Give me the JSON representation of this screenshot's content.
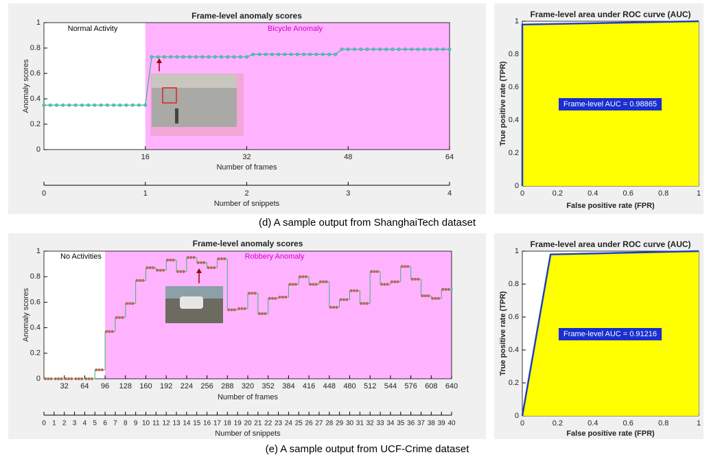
{
  "chart_data": [
    {
      "type": "line",
      "title": "Frame-level anomaly scores",
      "xlabel": "Number of frames",
      "ylabel": "Anomaly scores",
      "x": [
        0,
        1,
        2,
        3,
        4,
        5,
        6,
        7,
        8,
        9,
        10,
        11,
        12,
        13,
        14,
        15,
        16,
        17,
        18,
        19,
        20,
        21,
        22,
        23,
        24,
        25,
        26,
        27,
        28,
        29,
        30,
        31,
        32,
        33,
        34,
        35,
        36,
        37,
        38,
        39,
        40,
        41,
        42,
        43,
        44,
        45,
        46,
        47,
        48,
        49,
        50,
        51,
        52,
        53,
        54,
        55,
        56,
        57,
        58,
        59,
        60,
        61,
        62,
        63,
        64
      ],
      "values": [
        0.35,
        0.35,
        0.35,
        0.35,
        0.35,
        0.35,
        0.35,
        0.35,
        0.35,
        0.35,
        0.35,
        0.35,
        0.35,
        0.35,
        0.35,
        0.35,
        0.35,
        0.73,
        0.73,
        0.73,
        0.73,
        0.73,
        0.73,
        0.73,
        0.73,
        0.73,
        0.73,
        0.73,
        0.73,
        0.73,
        0.73,
        0.73,
        0.73,
        0.75,
        0.75,
        0.75,
        0.75,
        0.75,
        0.75,
        0.75,
        0.75,
        0.75,
        0.75,
        0.75,
        0.75,
        0.75,
        0.75,
        0.79,
        0.79,
        0.79,
        0.79,
        0.79,
        0.79,
        0.79,
        0.79,
        0.79,
        0.79,
        0.79,
        0.79,
        0.79,
        0.79,
        0.79,
        0.79,
        0.79,
        0.79
      ],
      "color": "#3cb371",
      "marker_color": "#48c8c8",
      "anomaly_span": [
        16,
        64
      ],
      "anomaly_color": "#ffb3ff",
      "annotations": [
        "Normal Activity",
        "Bicycle Anomaly"
      ],
      "xlim": [
        0,
        64
      ],
      "xticks": [
        16,
        32,
        48,
        64
      ],
      "ylim": [
        0,
        1
      ],
      "yticks": [
        0,
        0.2,
        0.4,
        0.6,
        0.8,
        1
      ],
      "x2label": "Number of snippets",
      "x2lim": [
        0,
        4
      ],
      "x2ticks": [
        0,
        1,
        2,
        3,
        4
      ]
    },
    {
      "type": "area",
      "title": "Frame-level area under ROC curve (AUC)",
      "xlabel": "False positive rate (FPR)",
      "ylabel": "True positive rate (TPR)",
      "x": [
        0,
        0,
        1
      ],
      "values": [
        0,
        0.98,
        1
      ],
      "color": "#1f3fbf",
      "fill": "#ffff00",
      "annotations": [
        "Frame-level AUC = 0.98865"
      ],
      "xlim": [
        0,
        1
      ],
      "xticks": [
        0,
        0.2,
        0.4,
        0.6,
        0.8,
        1
      ],
      "ylim": [
        0,
        1
      ],
      "yticks": [
        0,
        0.2,
        0.4,
        0.6,
        0.8,
        1
      ]
    },
    {
      "type": "step",
      "title": "Frame-level anomaly scores",
      "xlabel": "Number of frames",
      "ylabel": "Anomaly scores",
      "x": [
        0,
        16,
        32,
        48,
        64,
        80,
        96,
        112,
        128,
        144,
        160,
        176,
        192,
        208,
        224,
        240,
        256,
        272,
        288,
        304,
        320,
        336,
        352,
        368,
        384,
        400,
        416,
        432,
        448,
        464,
        480,
        496,
        512,
        528,
        544,
        560,
        576,
        592,
        608,
        624
      ],
      "values": [
        0,
        0,
        0,
        0,
        0,
        0.07,
        0.37,
        0.48,
        0.59,
        0.77,
        0.87,
        0.85,
        0.93,
        0.84,
        0.95,
        0.91,
        0.87,
        0.94,
        0.54,
        0.55,
        0.67,
        0.51,
        0.63,
        0.64,
        0.74,
        0.8,
        0.74,
        0.76,
        0.56,
        0.62,
        0.69,
        0.59,
        0.84,
        0.74,
        0.76,
        0.88,
        0.78,
        0.65,
        0.63,
        0.7
      ],
      "color": "#3cb371",
      "marker_color": "#e04848",
      "anomaly_span": [
        96,
        640
      ],
      "anomaly_color": "#ffb3ff",
      "annotations": [
        "No Activities",
        "Robbery Anomaly"
      ],
      "xlim": [
        0,
        640
      ],
      "xticks": [
        32,
        64,
        96,
        128,
        160,
        192,
        224,
        256,
        288,
        320,
        352,
        384,
        416,
        448,
        480,
        512,
        544,
        576,
        608,
        640
      ],
      "ylim": [
        0,
        1
      ],
      "yticks": [
        0,
        0.2,
        0.4,
        0.6,
        0.8,
        1
      ],
      "x2label": "Number of snippets",
      "x2lim": [
        0,
        40
      ],
      "x2ticks": [
        0,
        1,
        2,
        3,
        4,
        5,
        6,
        7,
        8,
        9,
        10,
        11,
        12,
        13,
        14,
        15,
        16,
        17,
        18,
        19,
        20,
        21,
        22,
        23,
        24,
        25,
        26,
        27,
        28,
        29,
        30,
        31,
        32,
        33,
        34,
        35,
        36,
        37,
        38,
        39,
        40
      ]
    },
    {
      "type": "area",
      "title": "Frame-level area under ROC curve (AUC)",
      "xlabel": "False positive rate (FPR)",
      "ylabel": "True positive rate (TPR)",
      "x": [
        0,
        0.16,
        1
      ],
      "values": [
        0,
        0.98,
        1
      ],
      "color": "#1f3fbf",
      "fill": "#ffff00",
      "annotations": [
        "Frame-level AUC = 0.91216"
      ],
      "xlim": [
        0,
        1
      ],
      "xticks": [
        0,
        0.2,
        0.4,
        0.6,
        0.8,
        1
      ],
      "ylim": [
        0,
        1
      ],
      "yticks": [
        0,
        0.2,
        0.4,
        0.6,
        0.8,
        1
      ]
    }
  ],
  "captions": [
    "(d) A sample output from ShanghaiTech dataset",
    "(e) A sample output from UCF-Crime dataset"
  ]
}
